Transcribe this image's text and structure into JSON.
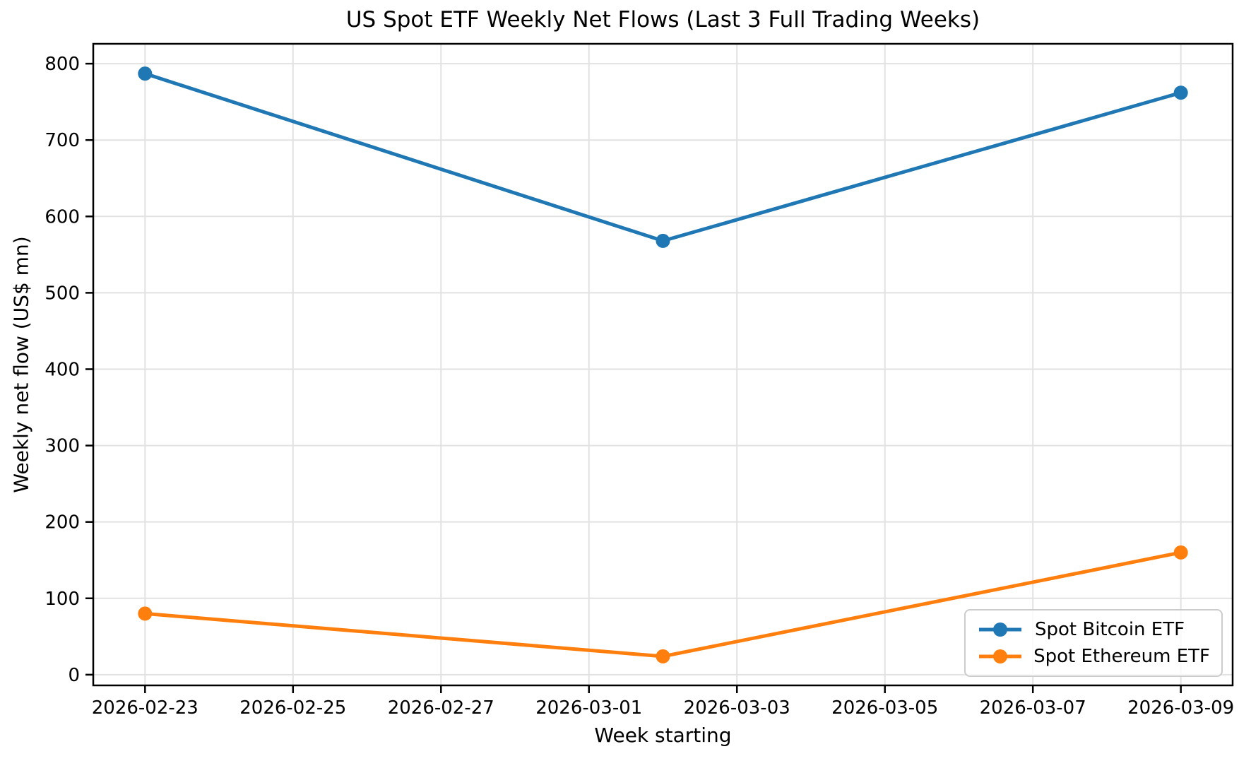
{
  "chart_data": {
    "type": "line",
    "title": "US Spot ETF Weekly Net Flows (Last 3 Full Trading Weeks)",
    "xlabel": "Week starting",
    "ylabel": "Weekly net flow (US$ mn)",
    "x": [
      "2026-02-23",
      "2026-03-02",
      "2026-03-09"
    ],
    "series": [
      {
        "name": "Spot Bitcoin ETF",
        "color": "#1f77b4",
        "values": [
          787,
          568,
          762
        ]
      },
      {
        "name": "Spot Ethereum ETF",
        "color": "#ff7f0e",
        "values": [
          80,
          24,
          160
        ]
      }
    ],
    "xticks": [
      "2026-02-23",
      "2026-02-25",
      "2026-02-27",
      "2026-03-01",
      "2026-03-03",
      "2026-03-05",
      "2026-03-07",
      "2026-03-09"
    ],
    "yticks": [
      0,
      100,
      200,
      300,
      400,
      500,
      600,
      700,
      800
    ],
    "ylim": [
      -14,
      826
    ],
    "xlim_days": [
      -0.7,
      14.7
    ],
    "grid": true,
    "legend_position": "lower right",
    "marker": "circle"
  }
}
